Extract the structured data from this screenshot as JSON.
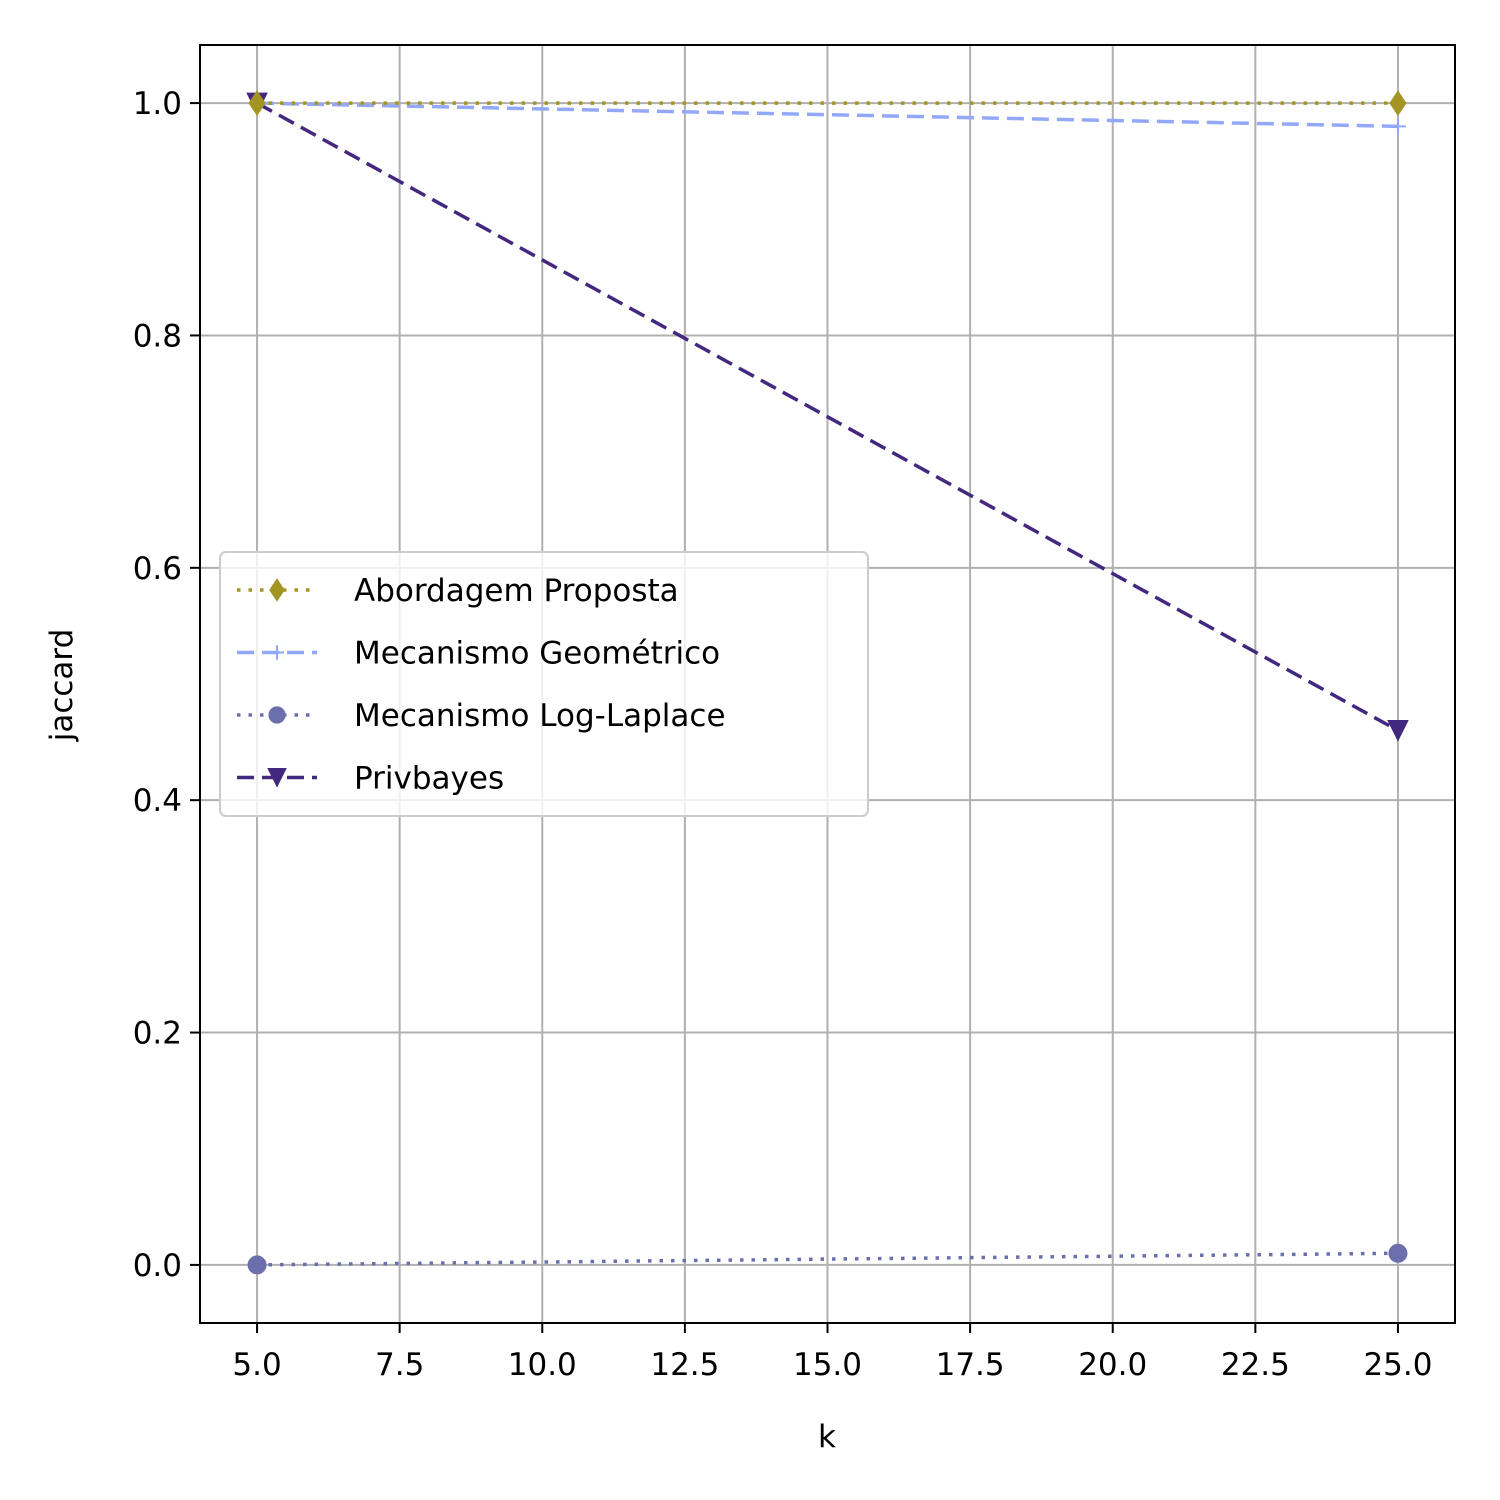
{
  "chart_data": {
    "type": "line",
    "title": "",
    "xlabel": "k",
    "ylabel": "jaccard",
    "xlim": [
      4.0,
      26.0
    ],
    "ylim": [
      -0.05,
      1.05
    ],
    "xticks": [
      5.0,
      7.5,
      10.0,
      12.5,
      15.0,
      17.5,
      20.0,
      22.5,
      25.0
    ],
    "xtick_labels": [
      "5.0",
      "7.5",
      "10.0",
      "12.5",
      "15.0",
      "17.5",
      "20.0",
      "22.5",
      "25.0"
    ],
    "yticks": [
      0.0,
      0.2,
      0.4,
      0.6,
      0.8,
      1.0
    ],
    "ytick_labels": [
      "0.0",
      "0.2",
      "0.4",
      "0.6",
      "0.8",
      "1.0"
    ],
    "grid": true,
    "legend_position": "center-left",
    "series": [
      {
        "name": "Abordagem Proposta",
        "x": [
          5,
          25
        ],
        "y": [
          1.0,
          1.0
        ],
        "color": "#a39524",
        "linestyle": "dotted",
        "marker": "diamond"
      },
      {
        "name": "Mecanismo Geométrico",
        "x": [
          5,
          25
        ],
        "y": [
          1.0,
          0.98
        ],
        "color": "#93a8f8",
        "linestyle": "dashed",
        "marker": "plus"
      },
      {
        "name": "Mecanismo Log-Laplace",
        "x": [
          5,
          25
        ],
        "y": [
          0.0,
          0.01
        ],
        "color": "#6b70ad",
        "linestyle": "dotted",
        "marker": "circle"
      },
      {
        "name": "Privbayes",
        "x": [
          5,
          25
        ],
        "y": [
          1.0,
          0.46
        ],
        "color": "#42287f",
        "linestyle": "dashed",
        "marker": "triangle-down"
      }
    ]
  }
}
